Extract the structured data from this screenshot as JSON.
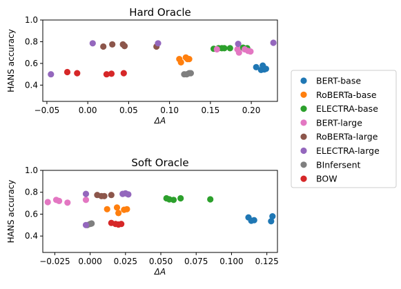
{
  "series_colors": {
    "BERT-base": "#1f77b4",
    "RoBERTa-base": "#ff7f0e",
    "ELECTRA-base": "#2ca02c",
    "BERT-large": "#e377c2",
    "RoBERTa-large": "#8c564b",
    "ELECTRA-large": "#9467bd",
    "BInfersent": "#7f7f7f",
    "BOW": "#d62728"
  },
  "legend": {
    "placement": "right",
    "entries": [
      "BERT-base",
      "RoBERTa-base",
      "ELECTRA-base",
      "BERT-large",
      "RoBERTa-large",
      "ELECTRA-large",
      "BInfersent",
      "BOW"
    ]
  },
  "chart_data": [
    {
      "type": "scatter",
      "title": "Hard Oracle",
      "xlabel": "ΔA",
      "ylabel": "HANS accuracy",
      "xlim": [
        -0.055,
        0.232
      ],
      "ylim": [
        0.25,
        1.0
      ],
      "xticks": [
        -0.05,
        0.0,
        0.05,
        0.1,
        0.15,
        0.2
      ],
      "xtick_labels": [
        "−0.05",
        "0.00",
        "0.05",
        "0.10",
        "0.15",
        "0.20"
      ],
      "yticks": [
        0.4,
        0.6,
        0.8,
        1.0
      ],
      "ytick_labels": [
        "0.4",
        "0.6",
        "0.8",
        "1.0"
      ],
      "grid": false,
      "series": [
        {
          "name": "BERT-base",
          "points": [
            [
              0.206,
              0.565
            ],
            [
              0.212,
              0.54
            ],
            [
              0.214,
              0.58
            ],
            [
              0.216,
              0.545
            ],
            [
              0.218,
              0.55
            ]
          ]
        },
        {
          "name": "RoBERTa-base",
          "points": [
            [
              0.112,
              0.64
            ],
            [
              0.114,
              0.61
            ],
            [
              0.12,
              0.655
            ],
            [
              0.122,
              0.64
            ],
            [
              0.124,
              0.64
            ]
          ]
        },
        {
          "name": "ELECTRA-base",
          "points": [
            [
              0.154,
              0.735
            ],
            [
              0.16,
              0.74
            ],
            [
              0.164,
              0.74
            ],
            [
              0.167,
              0.74
            ],
            [
              0.174,
              0.74
            ],
            [
              0.19,
              0.745
            ],
            [
              0.195,
              0.74
            ]
          ]
        },
        {
          "name": "BERT-large",
          "points": [
            [
              0.158,
              0.73
            ],
            [
              0.183,
              0.73
            ],
            [
              0.185,
              0.7
            ],
            [
              0.192,
              0.73
            ],
            [
              0.196,
              0.715
            ],
            [
              0.199,
              0.71
            ]
          ]
        },
        {
          "name": "RoBERTa-large",
          "points": [
            [
              0.019,
              0.755
            ],
            [
              0.03,
              0.775
            ],
            [
              0.043,
              0.775
            ],
            [
              0.045,
              0.76
            ],
            [
              0.084,
              0.755
            ]
          ]
        },
        {
          "name": "ELECTRA-large",
          "points": [
            [
              0.006,
              0.785
            ],
            [
              0.086,
              0.785
            ],
            [
              0.184,
              0.78
            ],
            [
              0.227,
              0.79
            ]
          ]
        },
        {
          "name": "BInfersent",
          "points": [
            [
              0.118,
              0.5
            ],
            [
              0.121,
              0.5
            ],
            [
              0.124,
              0.51
            ],
            [
              0.126,
              0.51
            ]
          ]
        },
        {
          "name": "BOW",
          "points": [
            [
              -0.025,
              0.52
            ],
            [
              -0.013,
              0.51
            ],
            [
              0.023,
              0.5
            ],
            [
              0.029,
              0.505
            ],
            [
              0.044,
              0.51
            ]
          ]
        },
        {
          "name": "ELECTRA-large",
          "points": [
            [
              -0.045,
              0.5
            ]
          ]
        }
      ]
    },
    {
      "type": "scatter",
      "title": "Soft Oracle",
      "xlabel": "ΔA",
      "ylabel": "HANS accuracy",
      "xlim": [
        -0.0335,
        0.1325
      ],
      "ylim": [
        0.25,
        1.0
      ],
      "xticks": [
        -0.025,
        0.0,
        0.025,
        0.05,
        0.075,
        0.1,
        0.125
      ],
      "xtick_labels": [
        "−0.025",
        "0.000",
        "0.025",
        "0.050",
        "0.075",
        "0.100",
        "0.125"
      ],
      "yticks": [
        0.4,
        0.6,
        0.8,
        1.0
      ],
      "ytick_labels": [
        "0.4",
        "0.6",
        "0.8",
        "1.0"
      ],
      "grid": false,
      "series": [
        {
          "name": "BERT-base",
          "points": [
            [
              0.112,
              0.57
            ],
            [
              0.114,
              0.54
            ],
            [
              0.116,
              0.545
            ],
            [
              0.128,
              0.535
            ],
            [
              0.129,
              0.58
            ]
          ]
        },
        {
          "name": "RoBERTa-base",
          "points": [
            [
              0.012,
              0.645
            ],
            [
              0.019,
              0.66
            ],
            [
              0.02,
              0.61
            ],
            [
              0.024,
              0.64
            ],
            [
              0.026,
              0.645
            ]
          ]
        },
        {
          "name": "ELECTRA-base",
          "points": [
            [
              0.054,
              0.745
            ],
            [
              0.056,
              0.735
            ],
            [
              0.059,
              0.73
            ],
            [
              0.064,
              0.745
            ],
            [
              0.085,
              0.735
            ]
          ]
        },
        {
          "name": "BERT-large",
          "points": [
            [
              -0.03,
              0.71
            ],
            [
              -0.024,
              0.73
            ],
            [
              -0.022,
              0.72
            ],
            [
              -0.016,
              0.705
            ],
            [
              -0.003,
              0.73
            ]
          ]
        },
        {
          "name": "RoBERTa-large",
          "points": [
            [
              0.005,
              0.775
            ],
            [
              0.008,
              0.765
            ],
            [
              0.01,
              0.765
            ],
            [
              0.015,
              0.775
            ]
          ]
        },
        {
          "name": "ELECTRA-large",
          "points": [
            [
              -0.003,
              0.785
            ],
            [
              0.023,
              0.785
            ],
            [
              0.025,
              0.79
            ],
            [
              0.027,
              0.78
            ]
          ]
        },
        {
          "name": "BInfersent",
          "points": [
            [
              -0.002,
              0.5
            ],
            [
              0.0,
              0.51
            ],
            [
              0.001,
              0.515
            ]
          ]
        },
        {
          "name": "BOW",
          "points": [
            [
              0.015,
              0.52
            ],
            [
              0.018,
              0.51
            ],
            [
              0.02,
              0.505
            ],
            [
              0.022,
              0.51
            ]
          ]
        },
        {
          "name": "ELECTRA-large",
          "points": [
            [
              -0.003,
              0.5
            ]
          ]
        }
      ]
    }
  ]
}
